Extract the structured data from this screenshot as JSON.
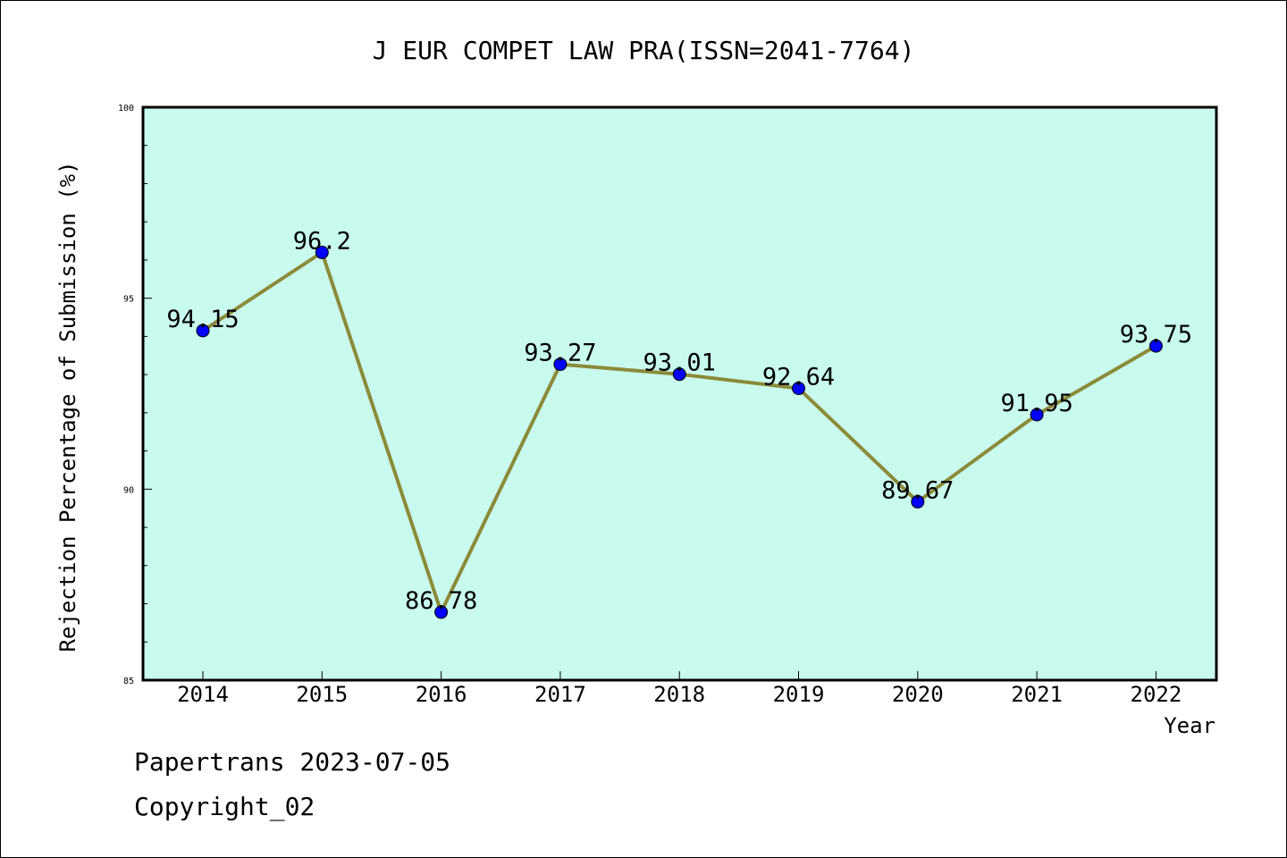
{
  "chart_data": {
    "type": "line",
    "title": "J EUR COMPET LAW PRA(ISSN=2041-7764)",
    "xlabel": "Year",
    "ylabel": "Rejection Percentage of Submission (%)",
    "categories": [
      "2014",
      "2015",
      "2016",
      "2017",
      "2018",
      "2019",
      "2020",
      "2021",
      "2022"
    ],
    "series": [
      {
        "values": [
          94.15,
          96.2,
          86.78,
          93.27,
          93.01,
          92.64,
          89.67,
          91.95,
          93.75
        ],
        "data_labels": [
          "94.15",
          "96.2",
          "86.78",
          "93.27",
          "93.01",
          "92.64",
          "89.67",
          "91.95",
          "93.75"
        ]
      }
    ],
    "ylim": [
      85,
      100
    ],
    "yticks": [
      "85",
      "90",
      "95",
      "100"
    ],
    "grid": false,
    "legend": "none",
    "colors": {
      "plot_background": "#c8fbee",
      "line": "#8c8a3a",
      "marker": "#0000ff"
    }
  },
  "footer": {
    "line1": "Papertrans 2023-07-05",
    "line2": "Copyright_02"
  }
}
